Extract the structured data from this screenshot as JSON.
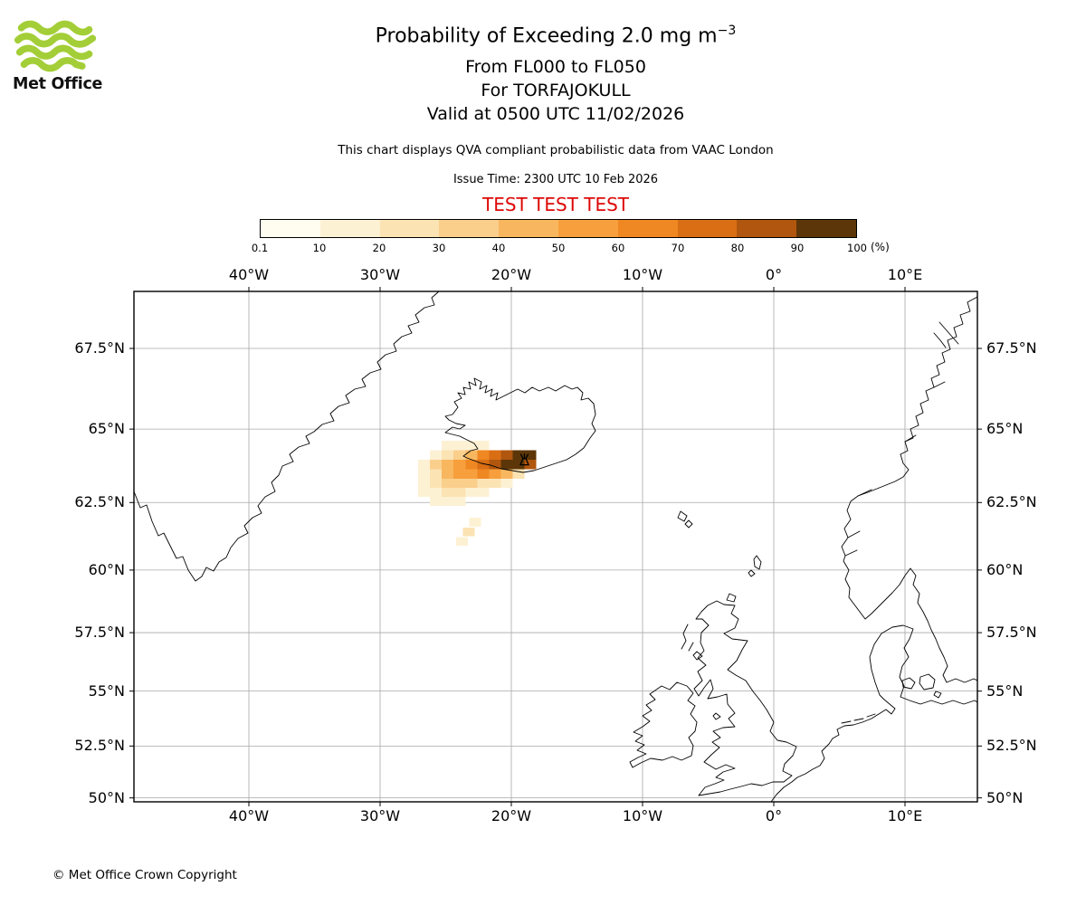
{
  "branding": {
    "logo_text": "Met Office",
    "brand_color": "#a3ce37",
    "copyright": "© Met Office Crown Copyright"
  },
  "header": {
    "title_prefix": "Probability of Exceeding 2.0 mg m",
    "title_exponent": "−3",
    "line_flight_levels": "From FL000 to FL050",
    "line_volcano": "For TORFAJOKULL",
    "line_valid": "Valid at 0500 UTC 11/02/2026",
    "description": "This chart displays QVA compliant probabilistic data from VAAC London",
    "issue_time": "Issue Time: 2300 UTC 10 Feb 2026",
    "test_banner": "TEST TEST TEST",
    "test_color": "#dd0806"
  },
  "colorbar": {
    "tick_labels": [
      "0.1",
      "10",
      "20",
      "30",
      "40",
      "50",
      "60",
      "70",
      "80",
      "90",
      "100"
    ],
    "unit": "(%)",
    "colors": [
      "#fffdf0",
      "#fdf1d4",
      "#fbe3b3",
      "#facf8c",
      "#f8b75f",
      "#f79f3c",
      "#ef8722",
      "#d96e14",
      "#b0560e",
      "#5c3608"
    ]
  },
  "map": {
    "lon_labels": [
      "40°W",
      "30°W",
      "20°W",
      "10°W",
      "0°",
      "10°E"
    ],
    "lat_labels": [
      "67.5°N",
      "65°N",
      "62.5°N",
      "60°N",
      "57.5°N",
      "55°N",
      "52.5°N",
      "50°N"
    ]
  },
  "chart_data": {
    "type": "heatmap",
    "title": "Probability of Exceeding 2.0 mg m^-3, FL000 to FL050, TORFAJOKULL, valid 0500 UTC 11/02/2026",
    "units": "%",
    "prob_bins": [
      0.1,
      10,
      20,
      30,
      40,
      50,
      60,
      70,
      80,
      90,
      100
    ],
    "lon_tick_values": [
      -40,
      -30,
      -20,
      -10,
      0,
      10
    ],
    "lat_tick_values": [
      67.5,
      65,
      62.5,
      60,
      57.5,
      55,
      52.5,
      50
    ],
    "lon_range": [
      -48.8,
      15.5
    ],
    "lat_range": [
      49.9,
      69.1
    ],
    "grid": "on",
    "legend_position": "top colorbar",
    "volcano_marker": {
      "lon": -19.0,
      "lat": 63.95
    },
    "plume": {
      "lon_origin": -27.1,
      "dlon": 0.9,
      "lat_origin": 64.62,
      "dlat": 0.32,
      "rows": [
        [
          [
            2,
            1
          ],
          [
            3,
            1
          ],
          [
            4,
            1
          ],
          [
            5,
            1
          ]
        ],
        [
          [
            1,
            1
          ],
          [
            2,
            2
          ],
          [
            3,
            3
          ],
          [
            4,
            4
          ],
          [
            5,
            6
          ],
          [
            6,
            7
          ],
          [
            7,
            8
          ],
          [
            8,
            9
          ],
          [
            9,
            9
          ]
        ],
        [
          [
            0,
            1
          ],
          [
            1,
            3
          ],
          [
            2,
            4
          ],
          [
            3,
            5
          ],
          [
            4,
            6
          ],
          [
            5,
            7
          ],
          [
            6,
            8
          ],
          [
            7,
            9
          ],
          [
            8,
            9
          ],
          [
            9,
            8
          ]
        ],
        [
          [
            0,
            1
          ],
          [
            1,
            2
          ],
          [
            2,
            4
          ],
          [
            3,
            5
          ],
          [
            4,
            5
          ],
          [
            5,
            6
          ],
          [
            6,
            5
          ],
          [
            7,
            4
          ],
          [
            8,
            2
          ]
        ],
        [
          [
            0,
            1
          ],
          [
            1,
            2
          ],
          [
            2,
            3
          ],
          [
            3,
            3
          ],
          [
            4,
            3
          ],
          [
            5,
            2
          ],
          [
            6,
            2
          ],
          [
            7,
            1
          ]
        ],
        [
          [
            0,
            1
          ],
          [
            1,
            1
          ],
          [
            2,
            2
          ],
          [
            3,
            2
          ],
          [
            4,
            1
          ],
          [
            5,
            1
          ]
        ],
        [
          [
            1,
            1
          ],
          [
            2,
            1
          ],
          [
            3,
            1
          ]
        ]
      ],
      "outliers": [
        [
          -23.2,
          61.95,
          1
        ],
        [
          -23.7,
          61.6,
          2
        ],
        [
          -24.2,
          61.25,
          1
        ]
      ]
    }
  }
}
